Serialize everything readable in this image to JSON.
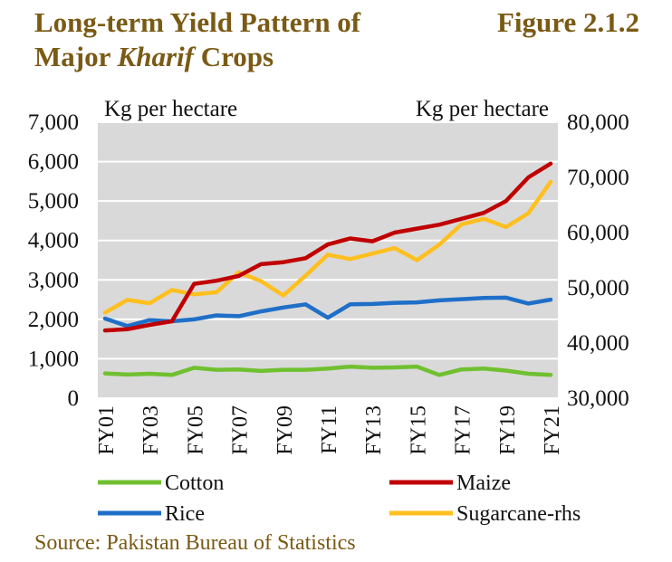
{
  "header": {
    "title_line1": "Long-term Yield Pattern of",
    "title_line2_pre": "Major ",
    "title_line2_em": "Kharif",
    "title_line2_post": " Crops",
    "figure": "Figure 2.1.2"
  },
  "source": "Source: Pakistan Bureau of Statistics",
  "colors": {
    "plot_bg": "#d9d9d9",
    "cotton": "#70c030",
    "maize": "#c00000",
    "rice": "#1f6fc8",
    "sugarcane": "#ffbf1f"
  },
  "chart_data": {
    "type": "line",
    "ylabel_left": "Kg per hectare",
    "ylabel_right": "Kg per hectare",
    "ylim_left": [
      0,
      7000
    ],
    "ylim_right": [
      30000,
      80000
    ],
    "yticks_left": [
      "0",
      "1,000",
      "2,000",
      "3,000",
      "4,000",
      "5,000",
      "6,000",
      "7,000"
    ],
    "yticks_right": [
      "30,000",
      "40,000",
      "50,000",
      "60,000",
      "70,000",
      "80,000"
    ],
    "grid": true,
    "legend_position": "bottom",
    "x": [
      "FY01",
      "FY02",
      "FY03",
      "FY04",
      "FY05",
      "FY06",
      "FY07",
      "FY08",
      "FY09",
      "FY10",
      "FY11",
      "FY12",
      "FY13",
      "FY14",
      "FY15",
      "FY16",
      "FY17",
      "FY18",
      "FY19",
      "FY20",
      "FY21"
    ],
    "xtick_labels": [
      "FY01",
      "FY03",
      "FY05",
      "FY07",
      "FY09",
      "FY11",
      "FY13",
      "FY15",
      "FY17",
      "FY19",
      "FY21"
    ],
    "series": [
      {
        "name": "Cotton",
        "axis": "left",
        "color": "#70c030",
        "values": [
          630,
          600,
          620,
          590,
          770,
          720,
          730,
          690,
          720,
          720,
          750,
          800,
          770,
          780,
          800,
          590,
          730,
          750,
          700,
          620,
          590
        ]
      },
      {
        "name": "Maize",
        "axis": "left",
        "color": "#c00000",
        "values": [
          1720,
          1750,
          1860,
          1950,
          2900,
          2980,
          3100,
          3400,
          3450,
          3550,
          3900,
          4050,
          3980,
          4200,
          4300,
          4400,
          4550,
          4700,
          5000,
          5600,
          5950
        ]
      },
      {
        "name": "Rice",
        "axis": "left",
        "color": "#1f6fc8",
        "values": [
          2020,
          1830,
          1980,
          1950,
          2000,
          2100,
          2080,
          2200,
          2300,
          2380,
          2040,
          2380,
          2390,
          2420,
          2430,
          2480,
          2510,
          2540,
          2550,
          2400,
          2500
        ]
      },
      {
        "name": "Sugarcane-rhs",
        "axis": "right",
        "color": "#ffbf1f",
        "values": [
          45500,
          47800,
          47200,
          49600,
          48800,
          49200,
          52800,
          51200,
          48600,
          52200,
          56000,
          55200,
          56200,
          57200,
          55000,
          57800,
          61500,
          62500,
          61000,
          63500,
          69200
        ]
      }
    ]
  }
}
